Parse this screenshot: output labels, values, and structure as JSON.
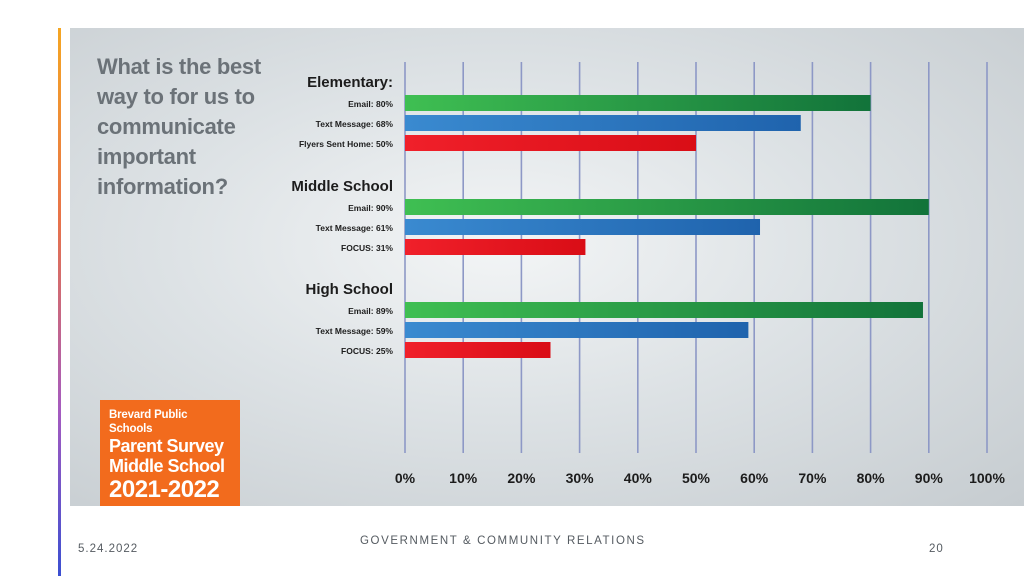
{
  "slide": {
    "question": "What is the best way to for us to communicate important information?",
    "badge": {
      "org": "Brevard Public Schools",
      "title_line1": "Parent Survey",
      "title_line2": "Middle School",
      "year": "2021-2022"
    }
  },
  "footer": {
    "date": "5.24.2022",
    "org": "GOVERNMENT & COMMUNITY RELATIONS",
    "page": "20"
  },
  "colors": {
    "email": "#2f9e48",
    "text_message": "#2e78c2",
    "other": "#e5161f",
    "grid": "#8d98c6"
  },
  "chart_data": {
    "type": "bar",
    "orientation": "horizontal",
    "xlim": [
      0,
      100
    ],
    "x_ticks": [
      "0%",
      "10%",
      "20%",
      "30%",
      "40%",
      "50%",
      "60%",
      "70%",
      "80%",
      "90%",
      "100%"
    ],
    "grid": true,
    "groups": [
      {
        "name": "Elementary:",
        "bars": [
          {
            "label": "Email: 80%",
            "value": 80,
            "kind": "email"
          },
          {
            "label": "Text Message: 68%",
            "value": 68,
            "kind": "text_message"
          },
          {
            "label": "Flyers Sent Home: 50%",
            "value": 50,
            "kind": "other"
          }
        ]
      },
      {
        "name": "Middle School",
        "bars": [
          {
            "label": "Email: 90%",
            "value": 90,
            "kind": "email"
          },
          {
            "label": "Text Message: 61%",
            "value": 61,
            "kind": "text_message"
          },
          {
            "label": "FOCUS: 31%",
            "value": 31,
            "kind": "other"
          }
        ]
      },
      {
        "name": "High School",
        "bars": [
          {
            "label": "Email: 89%",
            "value": 89,
            "kind": "email"
          },
          {
            "label": "Text Message: 59%",
            "value": 59,
            "kind": "text_message"
          },
          {
            "label": "FOCUS: 25%",
            "value": 25,
            "kind": "other"
          }
        ]
      }
    ]
  }
}
